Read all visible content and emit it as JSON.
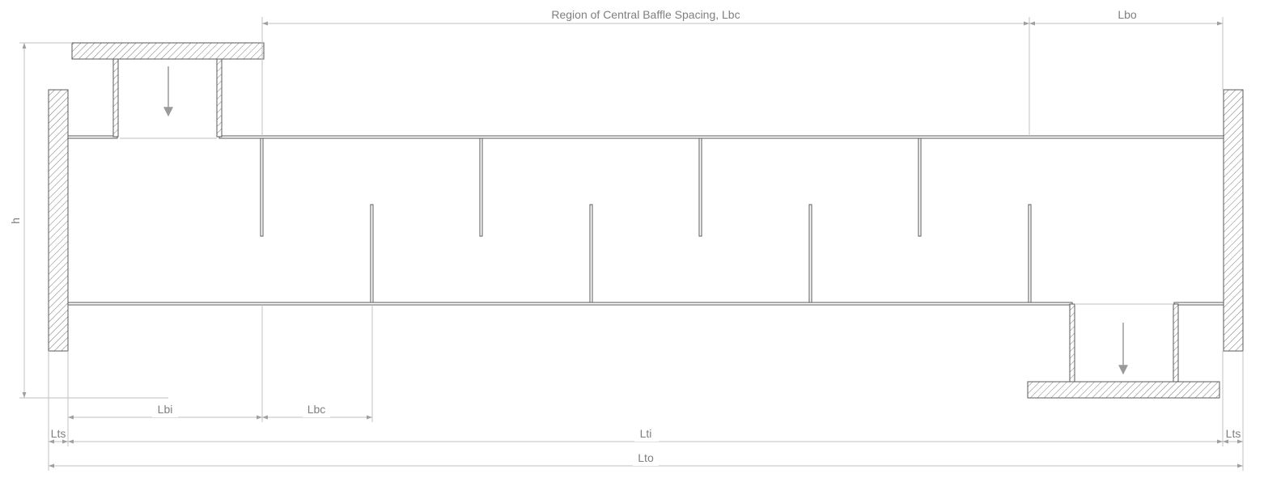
{
  "labels": {
    "region": "Region of Central Baffle Spacing, Lbc",
    "lbo": "Lbo",
    "h": "h",
    "lbi": "Lbi",
    "lbc": "Lbc",
    "lts_left": "Lts",
    "lti": "Lti",
    "lts_right": "Lts",
    "lto": "Lto"
  },
  "colors": {
    "outline": "#595959",
    "dimension": "#c0c0c0",
    "text": "#7f7f7f"
  }
}
